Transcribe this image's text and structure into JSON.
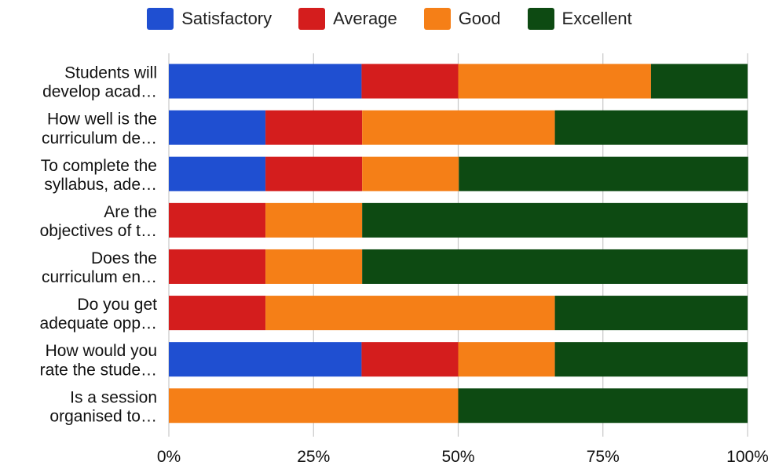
{
  "chart_data": {
    "type": "bar",
    "orientation": "horizontal",
    "stacked": true,
    "percent": true,
    "categories": [
      [
        "Students will",
        "develop acad…"
      ],
      [
        "How well is the",
        "curriculum de…"
      ],
      [
        "To complete the",
        "syllabus, ade…"
      ],
      [
        "Are the",
        "objectives of t…"
      ],
      [
        "Does the",
        "curriculum en…"
      ],
      [
        "Do you get",
        "adequate opp…"
      ],
      [
        "How would you",
        "rate the stude…"
      ],
      [
        "Is a session",
        "organised to…"
      ]
    ],
    "series": [
      {
        "name": "Satisfactory",
        "color": "#1f4fd1",
        "values": [
          33.3,
          16.7,
          16.7,
          0,
          0,
          0,
          33.3,
          0
        ]
      },
      {
        "name": "Average",
        "color": "#d41d1d",
        "values": [
          16.7,
          16.7,
          16.7,
          16.7,
          16.7,
          16.7,
          16.7,
          0
        ]
      },
      {
        "name": "Good",
        "color": "#f57f17",
        "values": [
          33.3,
          33.3,
          16.7,
          16.7,
          16.7,
          50,
          16.7,
          50
        ]
      },
      {
        "name": "Excellent",
        "color": "#0d4a12",
        "values": [
          16.7,
          33.3,
          50,
          66.6,
          66.6,
          33.3,
          33.3,
          50
        ]
      }
    ],
    "xlim": [
      0,
      100
    ],
    "x_ticks": [
      "0%",
      "25%",
      "50%",
      "75%",
      "100%"
    ],
    "grid": true,
    "legend_position": "top"
  }
}
